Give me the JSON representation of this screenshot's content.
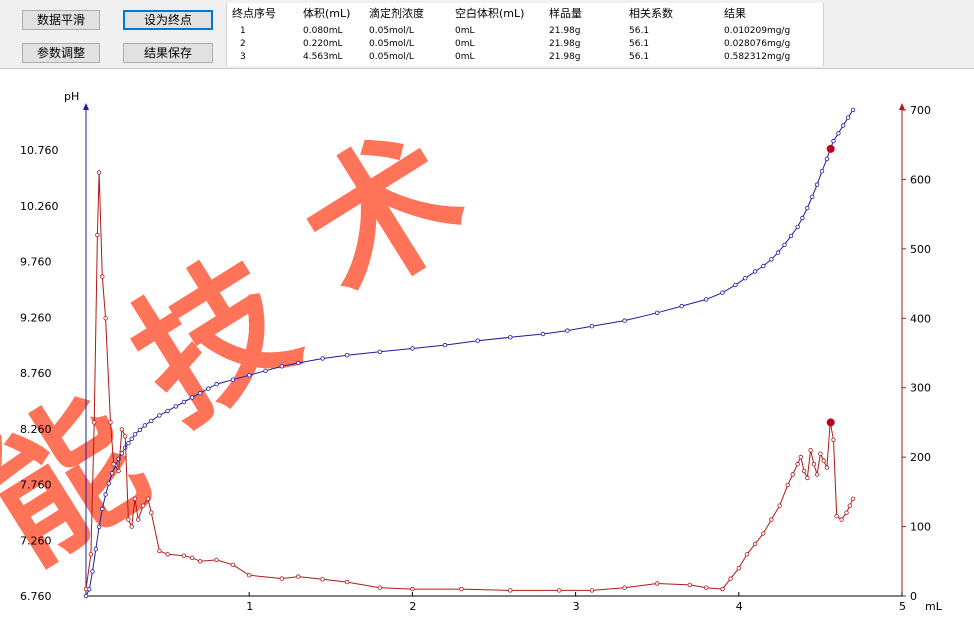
{
  "toolbar": {
    "buttons": [
      {
        "label": "数据平滑"
      },
      {
        "label": "设为终点"
      },
      {
        "label": "参数调整"
      },
      {
        "label": "结果保存"
      }
    ]
  },
  "results_table": {
    "headers": [
      "终点序号",
      "体积(mL)",
      "滴定剂浓度",
      "空白体积(mL)",
      "样品量",
      "相关系数",
      "结果"
    ],
    "rows": [
      [
        "1",
        "0.080mL",
        "0.05mol/L",
        "0mL",
        "21.98g",
        "56.1",
        "0.010209mg/g"
      ],
      [
        "2",
        "0.220mL",
        "0.05mol/L",
        "0mL",
        "21.98g",
        "56.1",
        "0.028076mg/g"
      ],
      [
        "3",
        "4.563mL",
        "0.05mol/L",
        "0mL",
        "21.98g",
        "56.1",
        "0.582312mg/g"
      ]
    ]
  },
  "watermark": {
    "text": "能技术",
    "color": "#ff5a3c"
  },
  "chart_data": {
    "type": "line",
    "title": "",
    "left_axis_label": "pH",
    "x_unit_label": "mL",
    "xlim": [
      0,
      5
    ],
    "x_ticks": [
      1,
      2,
      3,
      4,
      5
    ],
    "x_origin_label": "",
    "left_ylim": [
      6.76,
      11.3
    ],
    "left_ticks": [
      "6.760",
      "7.260",
      "7.760",
      "8.260",
      "8.760",
      "9.260",
      "9.760",
      "10.260",
      "10.760"
    ],
    "right_ylim": [
      0,
      700
    ],
    "right_ticks": [
      "0",
      "100",
      "200",
      "300",
      "400",
      "500",
      "600",
      "700"
    ],
    "colors": {
      "ph": "#1c1ca0",
      "derivative": "#b01818",
      "marker": "#c00020"
    },
    "series": [
      {
        "key": "ph",
        "axis": "left",
        "x": [
          0.0,
          0.02,
          0.04,
          0.06,
          0.08,
          0.1,
          0.12,
          0.14,
          0.16,
          0.18,
          0.2,
          0.22,
          0.24,
          0.26,
          0.28,
          0.3,
          0.33,
          0.36,
          0.4,
          0.45,
          0.5,
          0.55,
          0.6,
          0.65,
          0.7,
          0.75,
          0.8,
          0.9,
          1.0,
          1.1,
          1.2,
          1.3,
          1.45,
          1.6,
          1.8,
          2.0,
          2.2,
          2.4,
          2.6,
          2.8,
          2.95,
          3.1,
          3.3,
          3.5,
          3.65,
          3.8,
          3.9,
          3.98,
          4.04,
          4.1,
          4.15,
          4.2,
          4.24,
          4.28,
          4.32,
          4.36,
          4.39,
          4.42,
          4.45,
          4.48,
          4.51,
          4.54,
          4.56,
          4.58,
          4.61,
          4.64,
          4.67,
          4.7
        ],
        "y": [
          6.76,
          6.82,
          6.98,
          7.18,
          7.38,
          7.54,
          7.67,
          7.77,
          7.86,
          7.93,
          7.99,
          8.04,
          8.09,
          8.13,
          8.17,
          8.21,
          8.25,
          8.29,
          8.33,
          8.38,
          8.42,
          8.46,
          8.5,
          8.54,
          8.58,
          8.62,
          8.66,
          8.7,
          8.74,
          8.78,
          8.82,
          8.85,
          8.89,
          8.92,
          8.95,
          8.98,
          9.01,
          9.05,
          9.08,
          9.11,
          9.14,
          9.18,
          9.23,
          9.3,
          9.36,
          9.42,
          9.48,
          9.55,
          9.61,
          9.67,
          9.72,
          9.78,
          9.84,
          9.91,
          9.99,
          10.07,
          10.15,
          10.24,
          10.34,
          10.45,
          10.57,
          10.68,
          10.77,
          10.84,
          10.91,
          10.98,
          11.05,
          11.12
        ]
      },
      {
        "key": "derivative",
        "axis": "right",
        "x": [
          0.0,
          0.03,
          0.05,
          0.07,
          0.08,
          0.1,
          0.12,
          0.15,
          0.17,
          0.2,
          0.22,
          0.24,
          0.26,
          0.28,
          0.3,
          0.32,
          0.35,
          0.38,
          0.4,
          0.45,
          0.5,
          0.6,
          0.65,
          0.7,
          0.8,
          0.9,
          1.0,
          1.2,
          1.3,
          1.45,
          1.6,
          1.8,
          2.0,
          2.3,
          2.6,
          2.9,
          3.1,
          3.3,
          3.5,
          3.7,
          3.8,
          3.9,
          3.95,
          4.0,
          4.05,
          4.1,
          4.15,
          4.2,
          4.25,
          4.3,
          4.33,
          4.36,
          4.38,
          4.4,
          4.42,
          4.44,
          4.46,
          4.48,
          4.5,
          4.52,
          4.54,
          4.56,
          4.58,
          4.6,
          4.63,
          4.66,
          4.68,
          4.7
        ],
        "y": [
          10,
          60,
          250,
          520,
          610,
          460,
          400,
          250,
          190,
          180,
          240,
          230,
          110,
          100,
          140,
          110,
          130,
          140,
          120,
          65,
          60,
          58,
          55,
          50,
          52,
          45,
          30,
          25,
          28,
          24,
          20,
          12,
          10,
          10,
          8,
          8,
          8,
          12,
          18,
          16,
          12,
          10,
          25,
          40,
          60,
          75,
          90,
          110,
          130,
          160,
          175,
          190,
          200,
          180,
          170,
          210,
          190,
          175,
          205,
          195,
          185,
          250,
          225,
          115,
          110,
          120,
          130,
          140
        ]
      }
    ],
    "endpoints": [
      {
        "x": 4.563,
        "series": "ph",
        "y": 10.77
      },
      {
        "x": 4.563,
        "series": "derivative",
        "y": 250
      }
    ]
  }
}
